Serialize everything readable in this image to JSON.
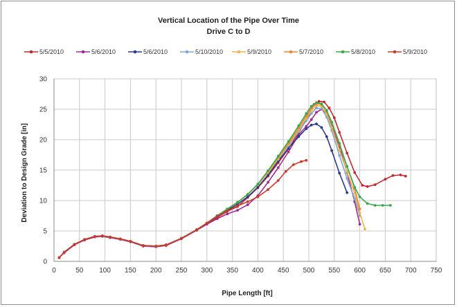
{
  "chart_data": {
    "type": "line",
    "title": "Vertical Location of the Pipe Over Time",
    "subtitle": "Drive C to D",
    "xlabel": "Pipe Length [ft]",
    "ylabel": "Deviation to Design Grade [in]",
    "xlim": [
      0,
      750
    ],
    "ylim": [
      0,
      30
    ],
    "xticks": [
      "0",
      "50",
      "100",
      "150",
      "200",
      "250",
      "300",
      "350",
      "400",
      "450",
      "500",
      "550",
      "600",
      "650",
      "700",
      "750"
    ],
    "yticks": [
      "0",
      "5",
      "10",
      "15",
      "20",
      "25",
      "30"
    ],
    "grid": true,
    "legend_position": "top",
    "series": [
      {
        "name": "5/5/2010",
        "color": "#c0282d",
        "points": [
          [
            10,
            0.6
          ],
          [
            20,
            1.5
          ],
          [
            40,
            2.8
          ],
          [
            60,
            3.6
          ],
          [
            80,
            4.1
          ],
          [
            95,
            4.2
          ],
          [
            110,
            4.0
          ],
          [
            130,
            3.7
          ],
          [
            150,
            3.3
          ],
          [
            175,
            2.6
          ],
          [
            200,
            2.5
          ],
          [
            220,
            2.7
          ],
          [
            250,
            3.8
          ],
          [
            280,
            5.2
          ],
          [
            300,
            6.2
          ],
          [
            320,
            7.2
          ],
          [
            340,
            8.2
          ],
          [
            360,
            9.0
          ],
          [
            380,
            10.5
          ],
          [
            400,
            12.1
          ],
          [
            420,
            14.0
          ],
          [
            440,
            16.2
          ],
          [
            460,
            18.5
          ],
          [
            480,
            21.1
          ],
          [
            500,
            24.1
          ],
          [
            510,
            25.8
          ],
          [
            520,
            26.3
          ],
          [
            530,
            26.2
          ],
          [
            540,
            25.2
          ],
          [
            550,
            23.6
          ],
          [
            560,
            21.2
          ],
          [
            575,
            17.8
          ],
          [
            590,
            14.6
          ],
          [
            605,
            12.5
          ],
          [
            615,
            12.3
          ],
          [
            630,
            12.6
          ],
          [
            650,
            13.5
          ],
          [
            665,
            14.1
          ],
          [
            680,
            14.2
          ],
          [
            690,
            14.0
          ]
        ]
      },
      {
        "name": "5/6/2010",
        "color": "#9f2b8f",
        "points": [
          [
            10,
            0.6
          ],
          [
            20,
            1.4
          ],
          [
            40,
            2.7
          ],
          [
            60,
            3.5
          ],
          [
            80,
            4.0
          ],
          [
            95,
            4.1
          ],
          [
            110,
            3.9
          ],
          [
            130,
            3.6
          ],
          [
            150,
            3.2
          ],
          [
            175,
            2.5
          ],
          [
            200,
            2.4
          ],
          [
            220,
            2.6
          ],
          [
            250,
            3.7
          ],
          [
            280,
            5.1
          ],
          [
            300,
            6.1
          ],
          [
            320,
            7.0
          ],
          [
            340,
            7.8
          ],
          [
            360,
            8.4
          ],
          [
            380,
            9.3
          ],
          [
            400,
            10.8
          ],
          [
            420,
            13.0
          ],
          [
            440,
            15.4
          ],
          [
            460,
            18.0
          ],
          [
            480,
            20.8
          ],
          [
            495,
            22.2
          ],
          [
            505,
            23.3
          ],
          [
            515,
            24.5
          ],
          [
            525,
            25.0
          ],
          [
            535,
            24.3
          ],
          [
            545,
            22.2
          ],
          [
            560,
            18.8
          ],
          [
            575,
            14.6
          ],
          [
            590,
            9.8
          ],
          [
            600,
            6.1
          ]
        ]
      },
      {
        "name": "5/6/2010",
        "color": "#2a3a8c",
        "points": [
          [
            10,
            0.6
          ],
          [
            20,
            1.5
          ],
          [
            40,
            2.8
          ],
          [
            60,
            3.6
          ],
          [
            80,
            4.1
          ],
          [
            95,
            4.2
          ],
          [
            110,
            4.0
          ],
          [
            130,
            3.7
          ],
          [
            150,
            3.3
          ],
          [
            175,
            2.6
          ],
          [
            200,
            2.5
          ],
          [
            220,
            2.7
          ],
          [
            250,
            3.8
          ],
          [
            280,
            5.2
          ],
          [
            300,
            6.3
          ],
          [
            320,
            7.4
          ],
          [
            340,
            8.4
          ],
          [
            360,
            9.4
          ],
          [
            380,
            10.6
          ],
          [
            400,
            12.2
          ],
          [
            420,
            14.2
          ],
          [
            440,
            16.5
          ],
          [
            460,
            18.6
          ],
          [
            480,
            20.5
          ],
          [
            495,
            21.8
          ],
          [
            505,
            22.4
          ],
          [
            515,
            22.6
          ],
          [
            525,
            22.0
          ],
          [
            535,
            20.5
          ],
          [
            545,
            18.2
          ],
          [
            560,
            14.5
          ],
          [
            575,
            11.3
          ]
        ]
      },
      {
        "name": "5/10/2010",
        "color": "#7ea6d8",
        "points": [
          [
            10,
            0.6
          ],
          [
            20,
            1.5
          ],
          [
            40,
            2.8
          ],
          [
            60,
            3.6
          ],
          [
            80,
            4.1
          ],
          [
            95,
            4.2
          ],
          [
            110,
            4.0
          ],
          [
            130,
            3.7
          ],
          [
            150,
            3.3
          ],
          [
            175,
            2.6
          ],
          [
            200,
            2.5
          ],
          [
            220,
            2.7
          ],
          [
            250,
            3.8
          ],
          [
            280,
            5.2
          ],
          [
            300,
            6.3
          ],
          [
            320,
            7.5
          ],
          [
            340,
            8.6
          ],
          [
            360,
            9.7
          ],
          [
            380,
            11.0
          ],
          [
            400,
            12.6
          ],
          [
            420,
            14.6
          ],
          [
            440,
            16.8
          ],
          [
            460,
            19.0
          ],
          [
            480,
            21.3
          ],
          [
            495,
            23.1
          ],
          [
            505,
            24.3
          ],
          [
            515,
            25.2
          ],
          [
            525,
            25.1
          ],
          [
            535,
            23.7
          ],
          [
            545,
            21.5
          ],
          [
            560,
            17.4
          ],
          [
            575,
            13.6
          ],
          [
            590,
            10.3
          ],
          [
            600,
            7.5
          ]
        ]
      },
      {
        "name": "5/9/2010",
        "color": "#e8b64a",
        "points": [
          [
            10,
            0.6
          ],
          [
            20,
            1.5
          ],
          [
            40,
            2.8
          ],
          [
            60,
            3.6
          ],
          [
            80,
            4.1
          ],
          [
            95,
            4.2
          ],
          [
            110,
            4.0
          ],
          [
            130,
            3.7
          ],
          [
            150,
            3.3
          ],
          [
            175,
            2.6
          ],
          [
            200,
            2.5
          ],
          [
            220,
            2.7
          ],
          [
            250,
            3.8
          ],
          [
            280,
            5.2
          ],
          [
            300,
            6.3
          ],
          [
            320,
            7.5
          ],
          [
            340,
            8.6
          ],
          [
            360,
            9.7
          ],
          [
            380,
            11.0
          ],
          [
            400,
            12.6
          ],
          [
            420,
            14.6
          ],
          [
            440,
            16.9
          ],
          [
            460,
            19.2
          ],
          [
            480,
            21.6
          ],
          [
            495,
            23.5
          ],
          [
            505,
            24.8
          ],
          [
            515,
            25.6
          ],
          [
            525,
            25.5
          ],
          [
            535,
            24.2
          ],
          [
            545,
            22.0
          ],
          [
            560,
            18.3
          ],
          [
            575,
            14.7
          ],
          [
            590,
            11.2
          ],
          [
            600,
            8.0
          ],
          [
            610,
            5.3
          ]
        ]
      },
      {
        "name": "5/7/2010",
        "color": "#e8873a",
        "points": [
          [
            10,
            0.6
          ],
          [
            20,
            1.5
          ],
          [
            40,
            2.8
          ],
          [
            60,
            3.6
          ],
          [
            80,
            4.1
          ],
          [
            95,
            4.2
          ],
          [
            110,
            4.0
          ],
          [
            130,
            3.7
          ],
          [
            150,
            3.3
          ],
          [
            175,
            2.6
          ],
          [
            200,
            2.5
          ],
          [
            220,
            2.7
          ],
          [
            250,
            3.8
          ],
          [
            280,
            5.2
          ],
          [
            300,
            6.3
          ],
          [
            320,
            7.5
          ],
          [
            340,
            8.6
          ],
          [
            360,
            9.7
          ],
          [
            380,
            11.0
          ],
          [
            400,
            12.7
          ],
          [
            420,
            14.8
          ],
          [
            440,
            17.1
          ],
          [
            460,
            19.4
          ],
          [
            480,
            21.9
          ],
          [
            495,
            23.9
          ],
          [
            505,
            25.2
          ],
          [
            515,
            25.9
          ],
          [
            525,
            25.8
          ],
          [
            535,
            24.7
          ],
          [
            545,
            22.8
          ],
          [
            560,
            19.2
          ],
          [
            575,
            15.6
          ],
          [
            590,
            12.0
          ],
          [
            600,
            8.6
          ]
        ]
      },
      {
        "name": "5/8/2010",
        "color": "#3aa84a",
        "points": [
          [
            10,
            0.6
          ],
          [
            20,
            1.5
          ],
          [
            40,
            2.8
          ],
          [
            60,
            3.6
          ],
          [
            80,
            4.1
          ],
          [
            95,
            4.2
          ],
          [
            110,
            4.0
          ],
          [
            130,
            3.7
          ],
          [
            150,
            3.3
          ],
          [
            175,
            2.6
          ],
          [
            200,
            2.5
          ],
          [
            220,
            2.7
          ],
          [
            250,
            3.8
          ],
          [
            280,
            5.2
          ],
          [
            300,
            6.3
          ],
          [
            320,
            7.5
          ],
          [
            340,
            8.6
          ],
          [
            360,
            9.7
          ],
          [
            380,
            11.0
          ],
          [
            400,
            12.7
          ],
          [
            420,
            14.9
          ],
          [
            440,
            17.3
          ],
          [
            460,
            19.7
          ],
          [
            480,
            22.3
          ],
          [
            495,
            24.3
          ],
          [
            505,
            25.5
          ],
          [
            515,
            26.1
          ],
          [
            525,
            25.9
          ],
          [
            535,
            24.8
          ],
          [
            545,
            22.9
          ],
          [
            560,
            19.4
          ],
          [
            575,
            15.6
          ],
          [
            590,
            12.2
          ],
          [
            600,
            10.6
          ],
          [
            615,
            9.5
          ],
          [
            630,
            9.2
          ],
          [
            645,
            9.2
          ],
          [
            660,
            9.2
          ]
        ]
      },
      {
        "name": "5/9/2010",
        "color": "#c93a2c",
        "points": [
          [
            10,
            0.6
          ],
          [
            20,
            1.5
          ],
          [
            40,
            2.8
          ],
          [
            60,
            3.6
          ],
          [
            80,
            4.1
          ],
          [
            95,
            4.2
          ],
          [
            110,
            4.0
          ],
          [
            130,
            3.7
          ],
          [
            150,
            3.3
          ],
          [
            175,
            2.6
          ],
          [
            200,
            2.5
          ],
          [
            220,
            2.7
          ],
          [
            250,
            3.8
          ],
          [
            280,
            5.2
          ],
          [
            300,
            6.3
          ],
          [
            320,
            7.4
          ],
          [
            340,
            8.3
          ],
          [
            360,
            9.1
          ],
          [
            380,
            9.8
          ],
          [
            400,
            10.6
          ],
          [
            420,
            11.8
          ],
          [
            440,
            13.3
          ],
          [
            455,
            14.8
          ],
          [
            470,
            15.9
          ],
          [
            485,
            16.4
          ],
          [
            495,
            16.6
          ]
        ]
      }
    ]
  }
}
